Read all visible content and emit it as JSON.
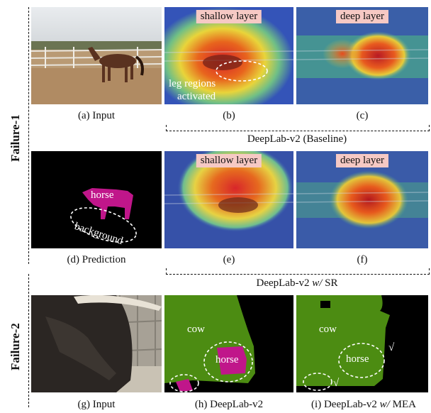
{
  "sections": {
    "failure1": "Failure-1",
    "failure2": "Failure-2"
  },
  "row1": {
    "a_caption": "(a) Input",
    "b_caption": "(b)",
    "c_caption": "(c)",
    "b_header": "shallow layer",
    "c_header": "deep layer",
    "b_note_line1": "leg regions",
    "b_note_line2": "activated",
    "group": "DeepLab-v2 (Baseline)"
  },
  "row2": {
    "d_caption": "(d) Prediction",
    "e_caption": "(e)",
    "f_caption": "(f)",
    "e_header": "shallow layer",
    "f_header": "deep layer",
    "d_horse": "horse",
    "d_background": "background",
    "group_prefix": "DeepLab-v2 ",
    "group_italic": "w/",
    "group_suffix": " SR"
  },
  "row3": {
    "g_caption": "(g) Input",
    "h_caption": "(h) DeepLab-v2",
    "i_caption_prefix": "(i) DeepLab-v2 ",
    "i_caption_italic": "w/",
    "i_caption_suffix": " MEA",
    "h_cow": "cow",
    "h_horse": "horse",
    "i_cow": "cow",
    "i_horse": "horse",
    "check": "√"
  },
  "colors": {
    "header_bg": "#f6c9c4",
    "seg_green": "#4c8c12",
    "seg_magenta": "#c0168a"
  }
}
